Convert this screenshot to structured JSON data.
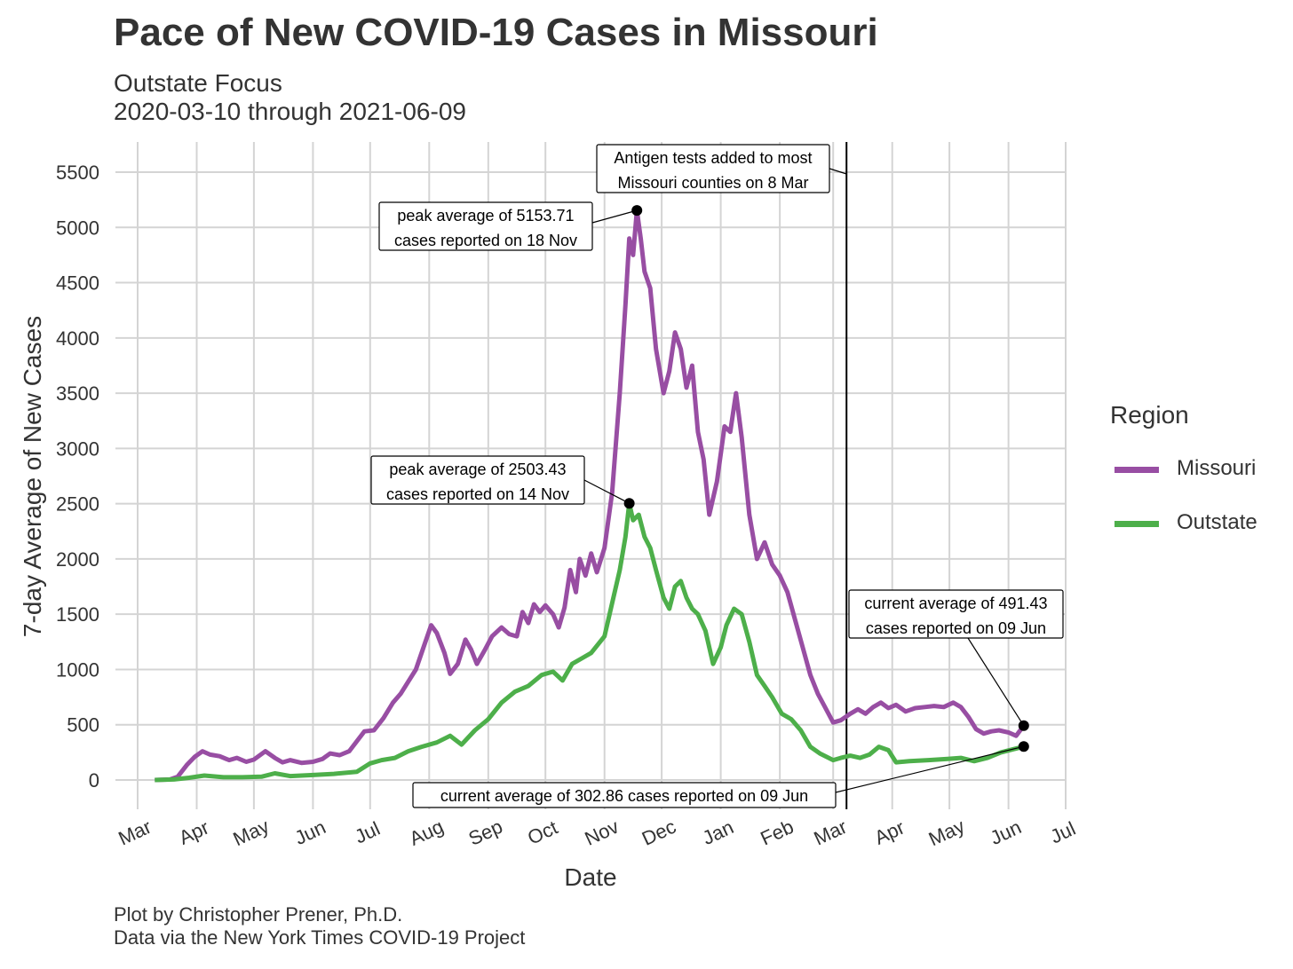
{
  "title": "Pace of New COVID-19 Cases in Missouri",
  "subtitle_line1": "Outstate Focus",
  "subtitle_line2": "2020-03-10 through 2021-06-09",
  "caption_line1": "Plot by Christopher Prener, Ph.D.",
  "caption_line2": "Data via the New York Times COVID-19 Project",
  "colors": {
    "missouri": "#984ea3",
    "outstate": "#4daf4a",
    "grid": "#d4d4d4",
    "text": "#333333"
  },
  "legend": {
    "title": "Region",
    "items": [
      {
        "name": "Missouri",
        "color": "#984ea3"
      },
      {
        "name": "Outstate",
        "color": "#4daf4a"
      }
    ]
  },
  "chart_data": {
    "type": "line",
    "title": "Pace of New COVID-19 Cases in Missouri",
    "xlabel": "Date",
    "ylabel": "7-day Average of New Cases",
    "xlim": [
      "2020-03-01",
      "2021-07-01"
    ],
    "ylim": [
      -250,
      5800
    ],
    "x_ticks": [
      {
        "date": "2020-03-01",
        "label": "Mar"
      },
      {
        "date": "2020-04-01",
        "label": "Apr"
      },
      {
        "date": "2020-05-01",
        "label": "May"
      },
      {
        "date": "2020-06-01",
        "label": "Jun"
      },
      {
        "date": "2020-07-01",
        "label": "Jul"
      },
      {
        "date": "2020-08-01",
        "label": "Aug"
      },
      {
        "date": "2020-09-01",
        "label": "Sep"
      },
      {
        "date": "2020-10-01",
        "label": "Oct"
      },
      {
        "date": "2020-11-01",
        "label": "Nov"
      },
      {
        "date": "2020-12-01",
        "label": "Dec"
      },
      {
        "date": "2021-01-01",
        "label": "Jan"
      },
      {
        "date": "2021-02-01",
        "label": "Feb"
      },
      {
        "date": "2021-03-01",
        "label": "Mar"
      },
      {
        "date": "2021-04-01",
        "label": "Apr"
      },
      {
        "date": "2021-05-01",
        "label": "May"
      },
      {
        "date": "2021-06-01",
        "label": "Jun"
      },
      {
        "date": "2021-07-01",
        "label": "Jul"
      }
    ],
    "y_ticks": [
      0,
      500,
      1000,
      1500,
      2000,
      2500,
      3000,
      3500,
      4000,
      4500,
      5000,
      5500
    ],
    "grid": true,
    "legend_position": "right",
    "series": [
      {
        "name": "Missouri",
        "color": "#984ea3",
        "points": [
          [
            "2020-03-10",
            0
          ],
          [
            "2020-03-18",
            5
          ],
          [
            "2020-03-22",
            30
          ],
          [
            "2020-03-27",
            140
          ],
          [
            "2020-03-31",
            210
          ],
          [
            "2020-04-04",
            260
          ],
          [
            "2020-04-08",
            230
          ],
          [
            "2020-04-13",
            215
          ],
          [
            "2020-04-18",
            180
          ],
          [
            "2020-04-22",
            200
          ],
          [
            "2020-04-27",
            165
          ],
          [
            "2020-05-01",
            185
          ],
          [
            "2020-05-07",
            260
          ],
          [
            "2020-05-12",
            200
          ],
          [
            "2020-05-16",
            160
          ],
          [
            "2020-05-20",
            180
          ],
          [
            "2020-05-26",
            155
          ],
          [
            "2020-06-01",
            165
          ],
          [
            "2020-06-06",
            190
          ],
          [
            "2020-06-10",
            240
          ],
          [
            "2020-06-15",
            225
          ],
          [
            "2020-06-20",
            260
          ],
          [
            "2020-06-24",
            350
          ],
          [
            "2020-06-28",
            440
          ],
          [
            "2020-07-03",
            450
          ],
          [
            "2020-07-08",
            560
          ],
          [
            "2020-07-13",
            700
          ],
          [
            "2020-07-17",
            780
          ],
          [
            "2020-07-21",
            890
          ],
          [
            "2020-07-25",
            1000
          ],
          [
            "2020-07-29",
            1200
          ],
          [
            "2020-08-02",
            1400
          ],
          [
            "2020-08-05",
            1330
          ],
          [
            "2020-08-09",
            1150
          ],
          [
            "2020-08-12",
            960
          ],
          [
            "2020-08-16",
            1050
          ],
          [
            "2020-08-20",
            1270
          ],
          [
            "2020-08-23",
            1180
          ],
          [
            "2020-08-26",
            1050
          ],
          [
            "2020-08-30",
            1170
          ],
          [
            "2020-09-03",
            1300
          ],
          [
            "2020-09-08",
            1380
          ],
          [
            "2020-09-12",
            1320
          ],
          [
            "2020-09-16",
            1300
          ],
          [
            "2020-09-19",
            1520
          ],
          [
            "2020-09-22",
            1420
          ],
          [
            "2020-09-25",
            1590
          ],
          [
            "2020-09-28",
            1520
          ],
          [
            "2020-10-01",
            1580
          ],
          [
            "2020-10-05",
            1500
          ],
          [
            "2020-10-08",
            1380
          ],
          [
            "2020-10-11",
            1560
          ],
          [
            "2020-10-14",
            1900
          ],
          [
            "2020-10-17",
            1700
          ],
          [
            "2020-10-19",
            2000
          ],
          [
            "2020-10-22",
            1850
          ],
          [
            "2020-10-25",
            2050
          ],
          [
            "2020-10-28",
            1880
          ],
          [
            "2020-11-01",
            2100
          ],
          [
            "2020-11-05",
            2600
          ],
          [
            "2020-11-09",
            3500
          ],
          [
            "2020-11-12",
            4300
          ],
          [
            "2020-11-14",
            4900
          ],
          [
            "2020-11-16",
            4750
          ],
          [
            "2020-11-18",
            5153.71
          ],
          [
            "2020-11-20",
            4900
          ],
          [
            "2020-11-22",
            4600
          ],
          [
            "2020-11-25",
            4450
          ],
          [
            "2020-11-28",
            3900
          ],
          [
            "2020-12-02",
            3500
          ],
          [
            "2020-12-05",
            3700
          ],
          [
            "2020-12-08",
            4050
          ],
          [
            "2020-12-11",
            3900
          ],
          [
            "2020-12-14",
            3550
          ],
          [
            "2020-12-17",
            3750
          ],
          [
            "2020-12-20",
            3150
          ],
          [
            "2020-12-23",
            2900
          ],
          [
            "2020-12-26",
            2400
          ],
          [
            "2020-12-30",
            2700
          ],
          [
            "2021-01-03",
            3200
          ],
          [
            "2021-01-06",
            3150
          ],
          [
            "2021-01-09",
            3500
          ],
          [
            "2021-01-12",
            3100
          ],
          [
            "2021-01-16",
            2400
          ],
          [
            "2021-01-20",
            2000
          ],
          [
            "2021-01-24",
            2150
          ],
          [
            "2021-01-28",
            1950
          ],
          [
            "2021-02-01",
            1850
          ],
          [
            "2021-02-05",
            1700
          ],
          [
            "2021-02-09",
            1450
          ],
          [
            "2021-02-13",
            1200
          ],
          [
            "2021-02-17",
            950
          ],
          [
            "2021-02-21",
            780
          ],
          [
            "2021-02-25",
            650
          ],
          [
            "2021-03-01",
            520
          ],
          [
            "2021-03-05",
            540
          ],
          [
            "2021-03-10",
            600
          ],
          [
            "2021-03-14",
            640
          ],
          [
            "2021-03-18",
            600
          ],
          [
            "2021-03-22",
            660
          ],
          [
            "2021-03-26",
            700
          ],
          [
            "2021-03-30",
            650
          ],
          [
            "2021-04-03",
            680
          ],
          [
            "2021-04-08",
            620
          ],
          [
            "2021-04-13",
            650
          ],
          [
            "2021-04-18",
            660
          ],
          [
            "2021-04-23",
            670
          ],
          [
            "2021-04-28",
            660
          ],
          [
            "2021-05-03",
            700
          ],
          [
            "2021-05-07",
            660
          ],
          [
            "2021-05-11",
            570
          ],
          [
            "2021-05-15",
            460
          ],
          [
            "2021-05-19",
            420
          ],
          [
            "2021-05-23",
            440
          ],
          [
            "2021-05-27",
            450
          ],
          [
            "2021-06-01",
            430
          ],
          [
            "2021-06-05",
            400
          ],
          [
            "2021-06-09",
            491.43
          ]
        ]
      },
      {
        "name": "Outstate",
        "color": "#4daf4a",
        "points": [
          [
            "2020-03-10",
            0
          ],
          [
            "2020-03-20",
            5
          ],
          [
            "2020-03-28",
            20
          ],
          [
            "2020-04-05",
            40
          ],
          [
            "2020-04-15",
            25
          ],
          [
            "2020-04-25",
            25
          ],
          [
            "2020-05-05",
            30
          ],
          [
            "2020-05-12",
            60
          ],
          [
            "2020-05-20",
            35
          ],
          [
            "2020-06-01",
            45
          ],
          [
            "2020-06-12",
            55
          ],
          [
            "2020-06-24",
            75
          ],
          [
            "2020-07-01",
            150
          ],
          [
            "2020-07-07",
            180
          ],
          [
            "2020-07-14",
            200
          ],
          [
            "2020-07-21",
            260
          ],
          [
            "2020-07-28",
            300
          ],
          [
            "2020-08-05",
            340
          ],
          [
            "2020-08-12",
            400
          ],
          [
            "2020-08-18",
            320
          ],
          [
            "2020-08-25",
            450
          ],
          [
            "2020-09-01",
            550
          ],
          [
            "2020-09-08",
            700
          ],
          [
            "2020-09-15",
            800
          ],
          [
            "2020-09-22",
            850
          ],
          [
            "2020-09-29",
            950
          ],
          [
            "2020-10-05",
            980
          ],
          [
            "2020-10-10",
            900
          ],
          [
            "2020-10-15",
            1050
          ],
          [
            "2020-10-20",
            1100
          ],
          [
            "2020-10-25",
            1150
          ],
          [
            "2020-11-01",
            1300
          ],
          [
            "2020-11-05",
            1600
          ],
          [
            "2020-11-09",
            1900
          ],
          [
            "2020-11-12",
            2200
          ],
          [
            "2020-11-14",
            2503.43
          ],
          [
            "2020-11-16",
            2350
          ],
          [
            "2020-11-19",
            2400
          ],
          [
            "2020-11-22",
            2200
          ],
          [
            "2020-11-25",
            2100
          ],
          [
            "2020-11-28",
            1900
          ],
          [
            "2020-12-02",
            1650
          ],
          [
            "2020-12-05",
            1550
          ],
          [
            "2020-12-08",
            1750
          ],
          [
            "2020-12-11",
            1800
          ],
          [
            "2020-12-14",
            1650
          ],
          [
            "2020-12-17",
            1550
          ],
          [
            "2020-12-20",
            1500
          ],
          [
            "2020-12-24",
            1350
          ],
          [
            "2020-12-28",
            1050
          ],
          [
            "2021-01-01",
            1200
          ],
          [
            "2021-01-04",
            1400
          ],
          [
            "2021-01-08",
            1550
          ],
          [
            "2021-01-12",
            1500
          ],
          [
            "2021-01-16",
            1250
          ],
          [
            "2021-01-20",
            950
          ],
          [
            "2021-01-24",
            850
          ],
          [
            "2021-01-28",
            750
          ],
          [
            "2021-02-02",
            600
          ],
          [
            "2021-02-07",
            550
          ],
          [
            "2021-02-12",
            450
          ],
          [
            "2021-02-17",
            300
          ],
          [
            "2021-02-22",
            240
          ],
          [
            "2021-03-01",
            180
          ],
          [
            "2021-03-05",
            200
          ],
          [
            "2021-03-10",
            220
          ],
          [
            "2021-03-15",
            200
          ],
          [
            "2021-03-20",
            230
          ],
          [
            "2021-03-25",
            300
          ],
          [
            "2021-03-30",
            270
          ],
          [
            "2021-04-03",
            160
          ],
          [
            "2021-04-10",
            170
          ],
          [
            "2021-04-20",
            180
          ],
          [
            "2021-04-30",
            190
          ],
          [
            "2021-05-07",
            200
          ],
          [
            "2021-05-14",
            170
          ],
          [
            "2021-05-21",
            200
          ],
          [
            "2021-05-28",
            250
          ],
          [
            "2021-06-04",
            280
          ],
          [
            "2021-06-09",
            302.86
          ]
        ]
      }
    ],
    "vline": {
      "date": "2021-03-08"
    },
    "annotations": [
      {
        "id": "ann-antigen",
        "lines": [
          "Antigen tests added to most",
          "Missouri counties on 8 Mar"
        ]
      },
      {
        "id": "ann-peak-mo",
        "lines": [
          "peak average of 5153.71",
          "cases reported on 18 Nov"
        ],
        "point": [
          "2020-11-18",
          5153.71
        ]
      },
      {
        "id": "ann-peak-out",
        "lines": [
          "peak average of 2503.43",
          "cases reported on 14 Nov"
        ],
        "point": [
          "2020-11-14",
          2503.43
        ]
      },
      {
        "id": "ann-current-mo",
        "lines": [
          "current average of 491.43",
          "cases reported on 09 Jun"
        ],
        "point": [
          "2021-06-09",
          491.43
        ]
      },
      {
        "id": "ann-current-out",
        "lines": [
          "current average of 302.86 cases reported on 09 Jun"
        ],
        "point": [
          "2021-06-09",
          302.86
        ]
      }
    ]
  }
}
